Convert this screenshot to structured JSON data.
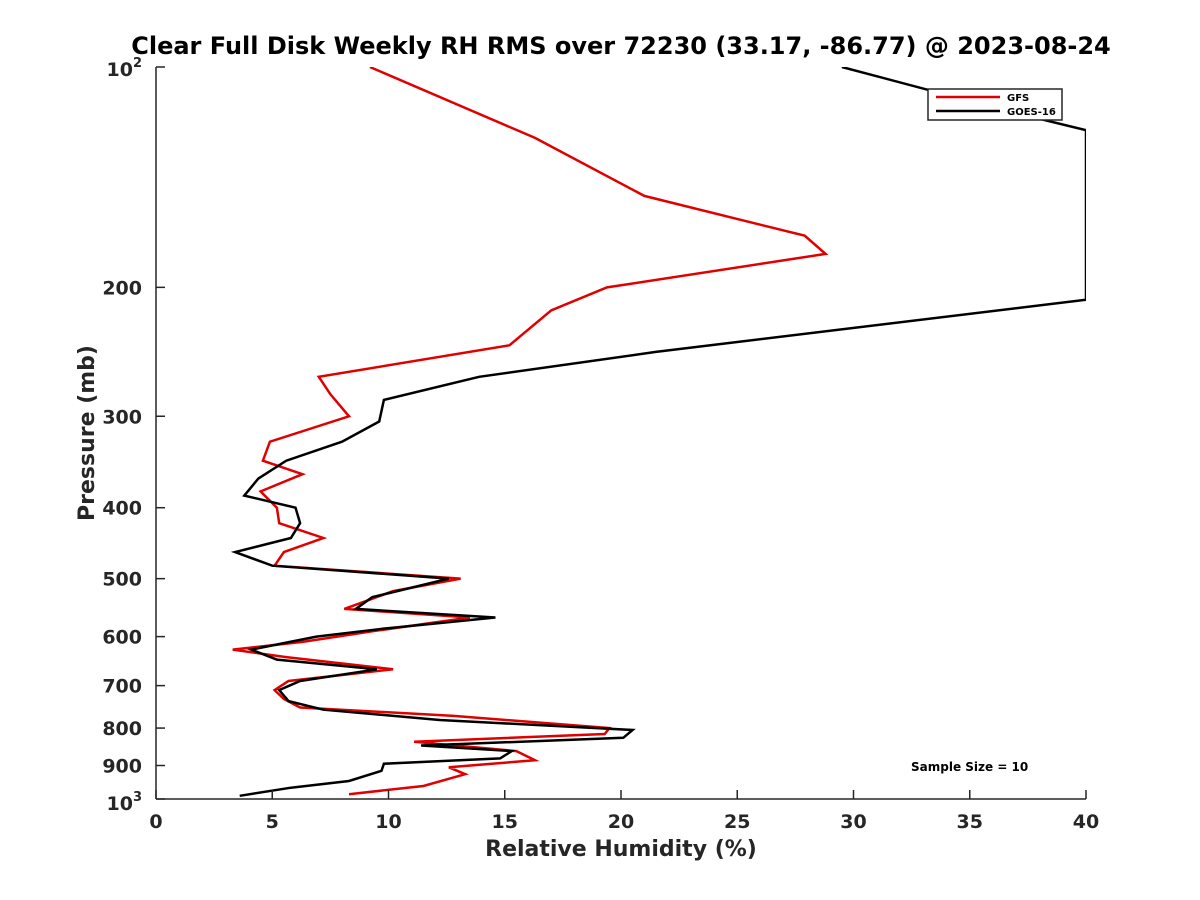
{
  "chart_data": {
    "type": "line",
    "title": "Clear Full Disk Weekly RH RMS over 72230 (33.17, -86.77) @ 2023-08-24",
    "xlabel": "Relative Humidity (%)",
    "ylabel": "Pressure (mb)",
    "xlim": [
      0,
      40
    ],
    "ylim": [
      100,
      1000
    ],
    "yscale": "log",
    "y_reversed": true,
    "x_ticks": [
      0,
      5,
      10,
      15,
      20,
      25,
      30,
      35,
      40
    ],
    "x_tick_labels": [
      "0",
      "5",
      "10",
      "15",
      "20",
      "25",
      "30",
      "35",
      "40"
    ],
    "y_ticks": [
      200,
      300,
      400,
      500,
      600,
      700,
      800,
      900
    ],
    "y_tick_labels": [
      "200",
      "300",
      "400",
      "500",
      "600",
      "700",
      "800",
      "900"
    ],
    "y_edge_labels": {
      "top": {
        "base": "10",
        "exp": "2"
      },
      "bottom": {
        "base": "10",
        "exp": "3"
      }
    },
    "legend_position": "top-right",
    "annotation": "Sample Size = 10",
    "series": [
      {
        "name": "GFS",
        "color": "#e00000",
        "points": [
          [
            9.2,
            100
          ],
          [
            16.3,
            125
          ],
          [
            21,
            150
          ],
          [
            27.9,
            170
          ],
          [
            28.8,
            180
          ],
          [
            19.4,
            200
          ],
          [
            17,
            215
          ],
          [
            15.2,
            240
          ],
          [
            7,
            265
          ],
          [
            7.5,
            280
          ],
          [
            8.3,
            300
          ],
          [
            4.9,
            325
          ],
          [
            4.6,
            345
          ],
          [
            6.3,
            360
          ],
          [
            4.5,
            380
          ],
          [
            5.2,
            400
          ],
          [
            5.3,
            420
          ],
          [
            7.2,
            440
          ],
          [
            5.5,
            460
          ],
          [
            5.1,
            480
          ],
          [
            13.1,
            500
          ],
          [
            10.2,
            520
          ],
          [
            8.1,
            550
          ],
          [
            13.5,
            565
          ],
          [
            9.3,
            590
          ],
          [
            6.3,
            610
          ],
          [
            3.3,
            625
          ],
          [
            5.6,
            640
          ],
          [
            10.2,
            665
          ],
          [
            5.7,
            690
          ],
          [
            5.1,
            710
          ],
          [
            5.5,
            730
          ],
          [
            6.2,
            750
          ],
          [
            12.8,
            770
          ],
          [
            19.5,
            800
          ],
          [
            19.3,
            815
          ],
          [
            11.1,
            835
          ],
          [
            15.5,
            860
          ],
          [
            16.3,
            885
          ],
          [
            12.6,
            905
          ],
          [
            13.3,
            925
          ],
          [
            11.5,
            960
          ],
          [
            8.3,
            985
          ]
        ]
      },
      {
        "name": "GOES-16",
        "color": "#000000",
        "points": [
          [
            29.5,
            100
          ],
          [
            36.7,
            115
          ],
          [
            40,
            122
          ],
          [
            40,
            208
          ],
          [
            21.5,
            245
          ],
          [
            13.9,
            265
          ],
          [
            9.8,
            285
          ],
          [
            9.6,
            305
          ],
          [
            8,
            325
          ],
          [
            5.6,
            345
          ],
          [
            4.4,
            365
          ],
          [
            3.8,
            385
          ],
          [
            6.0,
            400
          ],
          [
            6.2,
            420
          ],
          [
            5.8,
            440
          ],
          [
            3.4,
            460
          ],
          [
            5.0,
            480
          ],
          [
            12.6,
            500
          ],
          [
            9.3,
            530
          ],
          [
            8.6,
            550
          ],
          [
            14.6,
            565
          ],
          [
            9.8,
            585
          ],
          [
            6.9,
            600
          ],
          [
            4.1,
            625
          ],
          [
            5.2,
            645
          ],
          [
            9.5,
            665
          ],
          [
            6.2,
            690
          ],
          [
            5.3,
            710
          ],
          [
            5.7,
            735
          ],
          [
            7.2,
            755
          ],
          [
            12.2,
            780
          ],
          [
            20.5,
            805
          ],
          [
            20.1,
            825
          ],
          [
            11.4,
            845
          ],
          [
            15.3,
            860
          ],
          [
            14.8,
            880
          ],
          [
            9.8,
            895
          ],
          [
            9.7,
            915
          ],
          [
            8.3,
            945
          ],
          [
            5.8,
            965
          ],
          [
            3.6,
            990
          ]
        ]
      }
    ]
  }
}
